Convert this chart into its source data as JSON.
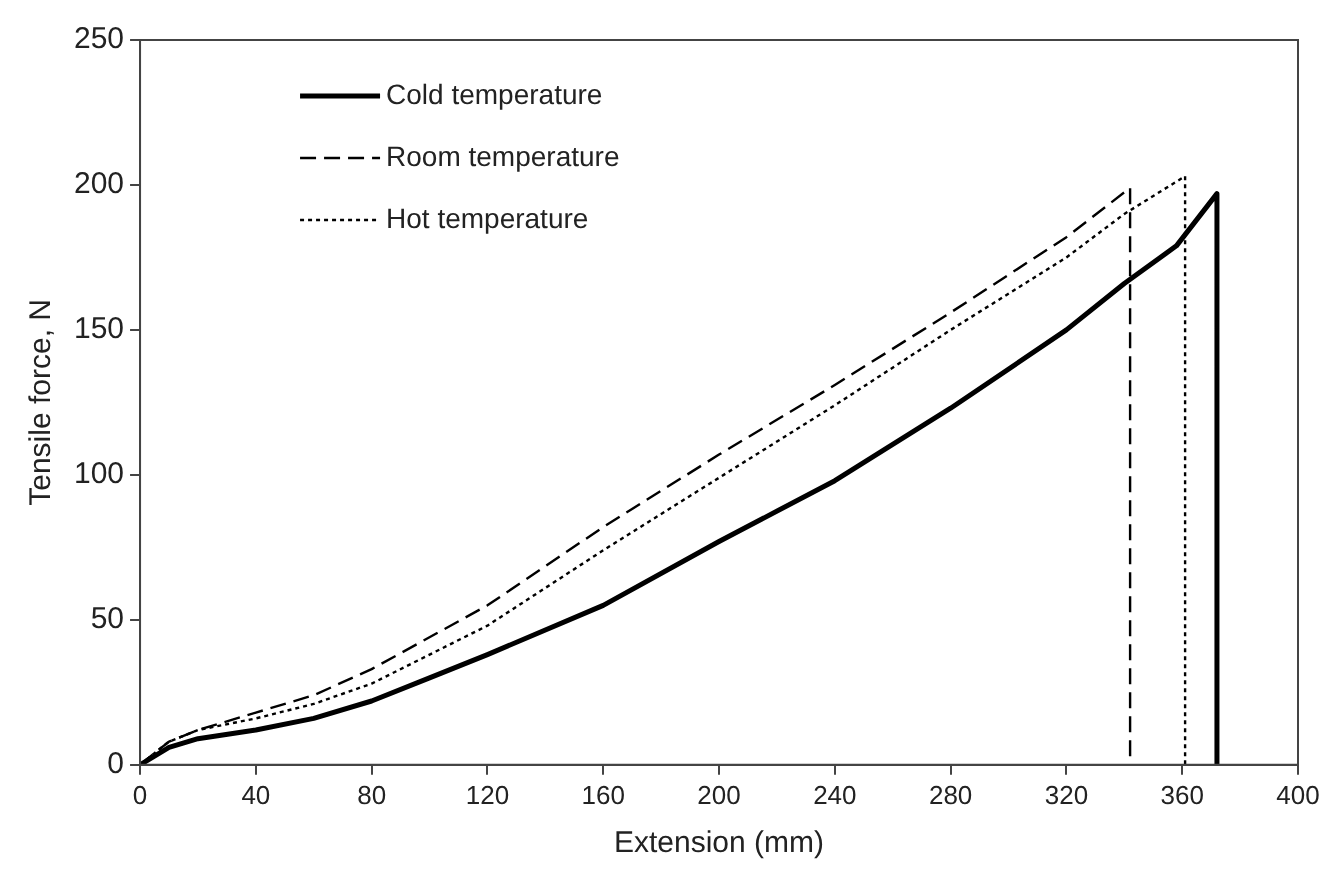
{
  "chart_data": {
    "type": "line",
    "xlabel": "Extension (mm)",
    "ylabel": "Tensile force, N",
    "xlim": [
      0,
      400
    ],
    "xticks": [
      0,
      40,
      80,
      120,
      160,
      200,
      240,
      280,
      320,
      360,
      400
    ],
    "ylim": [
      0,
      250
    ],
    "yticks": [
      0,
      50,
      100,
      150,
      200,
      250
    ],
    "grid": false,
    "legend": "top left",
    "marker": "none",
    "series": [
      {
        "name": "Cold temperature",
        "color": "#000000",
        "line_style": "solid",
        "x": [
          0,
          5,
          10,
          20,
          40,
          60,
          80,
          100,
          120,
          160,
          200,
          240,
          280,
          320,
          340,
          358,
          372,
          372
        ],
        "values": [
          0,
          3,
          6,
          9,
          12,
          16,
          22,
          30,
          38,
          55,
          77,
          98,
          123,
          150,
          166,
          179,
          197,
          0
        ]
      },
      {
        "name": "Room temperature",
        "color": "#000000",
        "line_style": "dashed",
        "x": [
          0,
          5,
          10,
          20,
          40,
          60,
          80,
          120,
          160,
          200,
          240,
          280,
          320,
          342,
          342
        ],
        "values": [
          0,
          4,
          8,
          12,
          18,
          24,
          33,
          55,
          82,
          107,
          131,
          156,
          182,
          199,
          0
        ]
      },
      {
        "name": "Hot temperature",
        "color": "#000000",
        "line_style": "dotted",
        "x": [
          0,
          5,
          10,
          20,
          40,
          60,
          80,
          120,
          160,
          200,
          240,
          280,
          320,
          340,
          361,
          361
        ],
        "values": [
          0,
          4,
          8,
          12,
          16,
          21,
          28,
          48,
          74,
          99,
          124,
          150,
          175,
          190,
          203,
          0
        ]
      }
    ]
  }
}
